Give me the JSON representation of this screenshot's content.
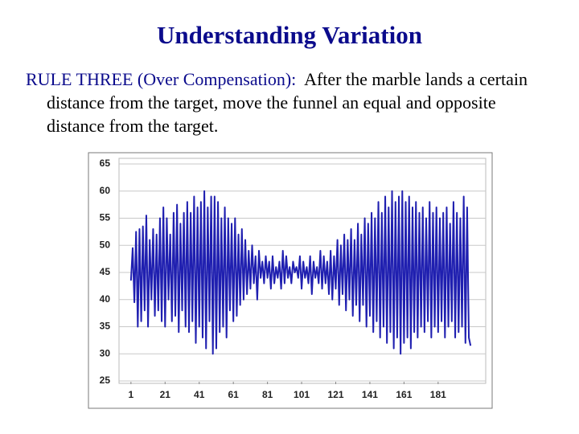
{
  "slide": {
    "title": "Understanding Variation",
    "rule_label": "RULE THREE (Over Compensation):",
    "rule_text": "After the marble lands a certain distance from the target, move the funnel an equal and opposite distance from the target."
  },
  "chart_data": {
    "type": "line",
    "color": "#1f1fb0",
    "grid": true,
    "xlim": [
      -6,
      207
    ],
    "xticks": [
      1,
      21,
      41,
      61,
      81,
      101,
      121,
      141,
      161,
      181
    ],
    "ylim": [
      25,
      65
    ],
    "yticks": [
      25,
      30,
      35,
      40,
      45,
      50,
      55,
      60,
      65
    ],
    "x": [
      1,
      2,
      3,
      4,
      5,
      6,
      7,
      8,
      9,
      10,
      11,
      12,
      13,
      14,
      15,
      16,
      17,
      18,
      19,
      20,
      21,
      22,
      23,
      24,
      25,
      26,
      27,
      28,
      29,
      30,
      31,
      32,
      33,
      34,
      35,
      36,
      37,
      38,
      39,
      40,
      41,
      42,
      43,
      44,
      45,
      46,
      47,
      48,
      49,
      50,
      51,
      52,
      53,
      54,
      55,
      56,
      57,
      58,
      59,
      60,
      61,
      62,
      63,
      64,
      65,
      66,
      67,
      68,
      69,
      70,
      71,
      72,
      73,
      74,
      75,
      76,
      77,
      78,
      79,
      80,
      81,
      82,
      83,
      84,
      85,
      86,
      87,
      88,
      89,
      90,
      91,
      92,
      93,
      94,
      95,
      96,
      97,
      98,
      99,
      100,
      101,
      102,
      103,
      104,
      105,
      106,
      107,
      108,
      109,
      110,
      111,
      112,
      113,
      114,
      115,
      116,
      117,
      118,
      119,
      120,
      121,
      122,
      123,
      124,
      125,
      126,
      127,
      128,
      129,
      130,
      131,
      132,
      133,
      134,
      135,
      136,
      137,
      138,
      139,
      140,
      141,
      142,
      143,
      144,
      145,
      146,
      147,
      148,
      149,
      150,
      151,
      152,
      153,
      154,
      155,
      156,
      157,
      158,
      159,
      160,
      161,
      162,
      163,
      164,
      165,
      166,
      167,
      168,
      169,
      170,
      171,
      172,
      173,
      174,
      175,
      176,
      177,
      178,
      179,
      180,
      181,
      182,
      183,
      184,
      185,
      186,
      187,
      188,
      189,
      190,
      191,
      192,
      193,
      194,
      195,
      196,
      197,
      198,
      199,
      200
    ],
    "values": [
      43.5,
      49.5,
      39.5,
      52.5,
      35,
      53,
      36,
      53.5,
      38,
      55.5,
      35,
      51,
      40,
      53,
      37,
      52,
      38,
      55,
      36,
      57,
      35,
      55,
      40,
      52,
      36,
      56,
      37,
      57.5,
      34,
      54,
      38,
      56,
      35,
      58,
      34,
      56,
      36,
      59,
      32,
      57,
      35,
      58,
      33,
      60,
      31,
      57,
      36,
      59,
      30,
      59,
      31,
      58,
      34,
      55,
      35,
      57,
      33,
      55,
      38,
      54,
      36,
      55,
      37,
      52,
      39,
      53,
      40,
      51,
      41,
      49,
      42,
      50,
      43,
      48,
      40,
      49,
      44,
      47,
      43,
      48,
      44,
      47,
      42,
      48,
      43,
      46,
      44,
      47,
      42,
      49,
      43,
      48,
      44,
      46,
      43,
      47,
      45,
      46,
      44,
      48,
      42,
      47,
      44,
      46,
      43,
      48,
      41,
      47,
      44,
      46,
      43,
      49,
      42,
      48,
      43,
      47,
      41,
      49,
      40,
      48,
      42,
      51,
      39,
      50,
      41,
      52,
      38,
      51,
      40,
      53,
      37,
      51,
      39,
      54,
      36,
      52,
      39,
      55,
      35,
      54,
      37,
      56,
      34,
      55,
      36,
      58,
      33,
      56,
      35,
      59,
      32,
      57,
      34,
      60,
      31,
      58,
      33,
      59,
      30,
      60,
      32,
      58,
      33,
      59,
      31,
      57,
      34,
      58,
      33,
      56,
      35,
      57,
      34,
      55,
      36,
      58,
      33,
      56,
      35,
      57,
      34,
      55,
      36,
      56,
      33,
      57,
      35,
      54,
      36,
      58,
      33,
      56,
      34,
      55,
      35,
      59,
      32,
      57,
      33,
      31.5
    ]
  }
}
